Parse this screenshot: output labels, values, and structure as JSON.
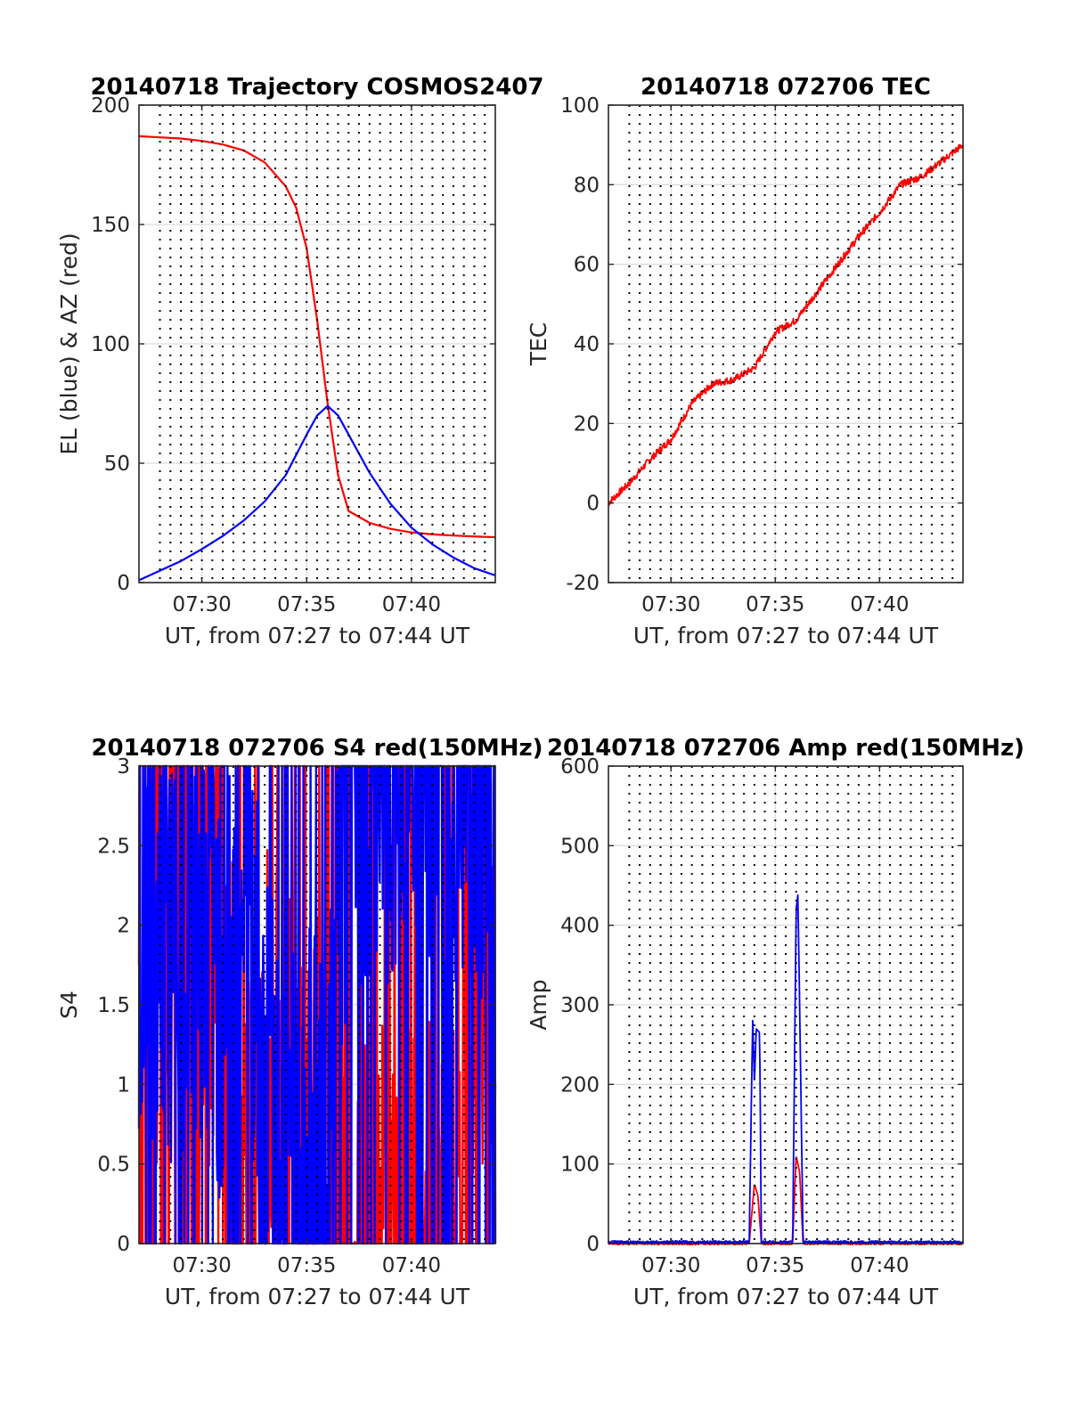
{
  "colors": {
    "red": "#ff0000",
    "blue": "#0000ff",
    "grid": "#dcdcdc",
    "dotted": "#000000",
    "axis": "#262626"
  },
  "chart_data": [
    {
      "type": "line",
      "title": "20140718 Trajectory COSMOS2407",
      "xlabel": "UT, from 07:27 to 07:44 UT",
      "ylabel": "EL (blue) & AZ (red)",
      "xlim": [
        "07:27",
        "07:44"
      ],
      "ylim": [
        0,
        200
      ],
      "xticks": [
        "07:30",
        "07:35",
        "07:40"
      ],
      "yticks": [
        "0",
        "50",
        "100",
        "150",
        "200"
      ],
      "grid": true,
      "series": [
        {
          "color": "#ff0000",
          "x": [
            "07:27",
            "07:28",
            "07:29",
            "07:30",
            "07:31",
            "07:32",
            "07:33",
            "07:34",
            "07:34:30",
            "07:35",
            "07:35:30",
            "07:36",
            "07:36:30",
            "07:37",
            "07:38",
            "07:39",
            "07:40",
            "07:41",
            "07:42",
            "07:43",
            "07:44"
          ],
          "values": [
            187,
            186.5,
            186,
            185,
            183.5,
            181,
            176,
            166,
            157,
            140,
            110,
            75,
            45,
            30,
            25,
            22.5,
            21,
            20.2,
            19.7,
            19.3,
            19
          ]
        },
        {
          "color": "#0000ff",
          "x": [
            "07:27",
            "07:28",
            "07:29",
            "07:30",
            "07:31",
            "07:32",
            "07:33",
            "07:34",
            "07:35",
            "07:35:30",
            "07:36",
            "07:36:30",
            "07:37",
            "07:38",
            "07:39",
            "07:40",
            "07:41",
            "07:42",
            "07:43",
            "07:44"
          ],
          "values": [
            1,
            5,
            9,
            14,
            19.5,
            26,
            34,
            45,
            62,
            70,
            74,
            70,
            62,
            46,
            33,
            23,
            16,
            10.5,
            6,
            3
          ]
        }
      ]
    },
    {
      "type": "line",
      "title": "20140718 072706 TEC",
      "xlabel": "UT, from 07:27 to 07:44 UT",
      "ylabel": "TEC",
      "xlim": [
        "07:27",
        "07:44"
      ],
      "ylim": [
        -20,
        100
      ],
      "xticks": [
        "07:30",
        "07:35",
        "07:40"
      ],
      "yticks": [
        "-20",
        "0",
        "20",
        "40",
        "60",
        "80",
        "100"
      ],
      "grid": true,
      "series": [
        {
          "color": "#ff0000",
          "x": [
            "07:27",
            "07:28",
            "07:29",
            "07:30",
            "07:31",
            "07:32",
            "07:33",
            "07:34",
            "07:35",
            "07:36",
            "07:37",
            "07:38",
            "07:39",
            "07:40",
            "07:41",
            "07:42",
            "07:43",
            "07:44"
          ],
          "values": [
            0,
            5,
            11,
            16,
            25,
            30,
            31,
            34,
            43,
            46,
            53,
            60,
            67,
            73,
            80,
            82,
            86,
            90
          ]
        }
      ]
    },
    {
      "type": "line",
      "title": "20140718 072706 S4 red(150MHz)",
      "xlabel": "UT, from 07:27 to 07:44 UT",
      "ylabel": "S4",
      "xlim": [
        "07:27",
        "07:44"
      ],
      "ylim": [
        0,
        3
      ],
      "xticks": [
        "07:30",
        "07:35",
        "07:40"
      ],
      "yticks": [
        "0",
        "0.5",
        "1",
        "1.5",
        "2",
        "2.5",
        "3"
      ],
      "grid": true,
      "series": [
        {
          "color": "#ff0000",
          "x": [
            "07:27",
            "07:28",
            "07:29",
            "07:30",
            "07:31",
            "07:32",
            "07:33",
            "07:34",
            "07:35",
            "07:36",
            "07:37",
            "07:38",
            "07:39",
            "07:40",
            "07:41",
            "07:42",
            "07:43",
            "07:44"
          ],
          "values": [
            2.0,
            1.8,
            2.2,
            1.6,
            2.4,
            0,
            1.3,
            0.9,
            0.8,
            0.8,
            0,
            0,
            0,
            0,
            0,
            0,
            1.4,
            1.9
          ]
        },
        {
          "color": "#0000ff",
          "x": [
            "07:27",
            "07:28",
            "07:29",
            "07:30",
            "07:31",
            "07:32",
            "07:33",
            "07:34",
            "07:35",
            "07:36",
            "07:37",
            "07:38",
            "07:39",
            "07:40",
            "07:41",
            "07:42",
            "07:43",
            "07:44"
          ],
          "values": [
            1.8,
            2.1,
            1.7,
            2.0,
            1.6,
            2.2,
            1.0,
            0.4,
            0.7,
            0.3,
            3.0,
            3.0,
            3.0,
            3.0,
            3.0,
            3.0,
            3.0,
            2.6
          ]
        }
      ]
    },
    {
      "type": "line",
      "title": "20140718 072706 Amp red(150MHz)",
      "xlabel": "UT, from 07:27 to 07:44 UT",
      "ylabel": "Amp",
      "xlim": [
        "07:27",
        "07:44"
      ],
      "ylim": [
        0,
        600
      ],
      "xticks": [
        "07:30",
        "07:35",
        "07:40"
      ],
      "yticks": [
        "0",
        "100",
        "200",
        "300",
        "400",
        "500",
        "600"
      ],
      "grid": true,
      "series": [
        {
          "color": "#ff0000",
          "x": [
            "07:27",
            "07:33:45",
            "07:34",
            "07:34:10",
            "07:34:20",
            "07:35",
            "07:35:50",
            "07:36",
            "07:36:10",
            "07:36:20",
            "07:44"
          ],
          "values": [
            0,
            0,
            75,
            60,
            0,
            0,
            0,
            110,
            90,
            0,
            0
          ]
        },
        {
          "color": "#0000ff",
          "x": [
            "07:27",
            "07:33:45",
            "07:33:55",
            "07:34",
            "07:34:05",
            "07:34:15",
            "07:34:20",
            "07:35:50",
            "07:36",
            "07:36:05",
            "07:36:10",
            "07:36:20",
            "07:44"
          ],
          "values": [
            2,
            2,
            285,
            200,
            270,
            265,
            2,
            2,
            420,
            438,
            300,
            2,
            2
          ]
        }
      ]
    }
  ]
}
